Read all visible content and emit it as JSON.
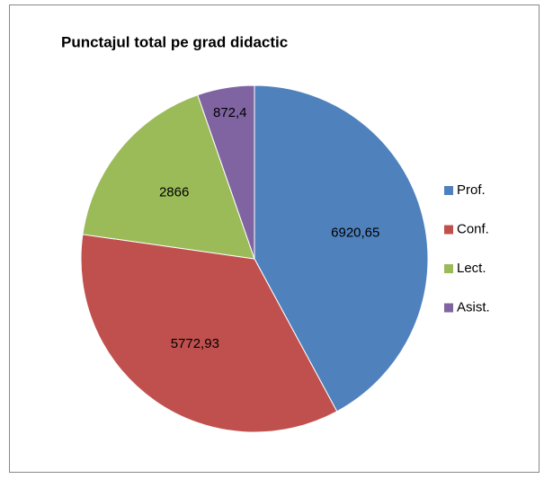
{
  "chart_data": {
    "type": "pie",
    "title": "Punctajul total pe grad didactic",
    "categories": [
      "Prof.",
      "Conf.",
      "Lect.",
      "Asist."
    ],
    "values": [
      6920.65,
      5772.93,
      2866,
      872.4
    ],
    "value_labels": [
      "6920,65",
      "5772,93",
      "2866",
      "872,4"
    ],
    "colors": [
      "#4f81bd",
      "#c0504d",
      "#9bbb59",
      "#8064a2"
    ],
    "legend": "right"
  }
}
